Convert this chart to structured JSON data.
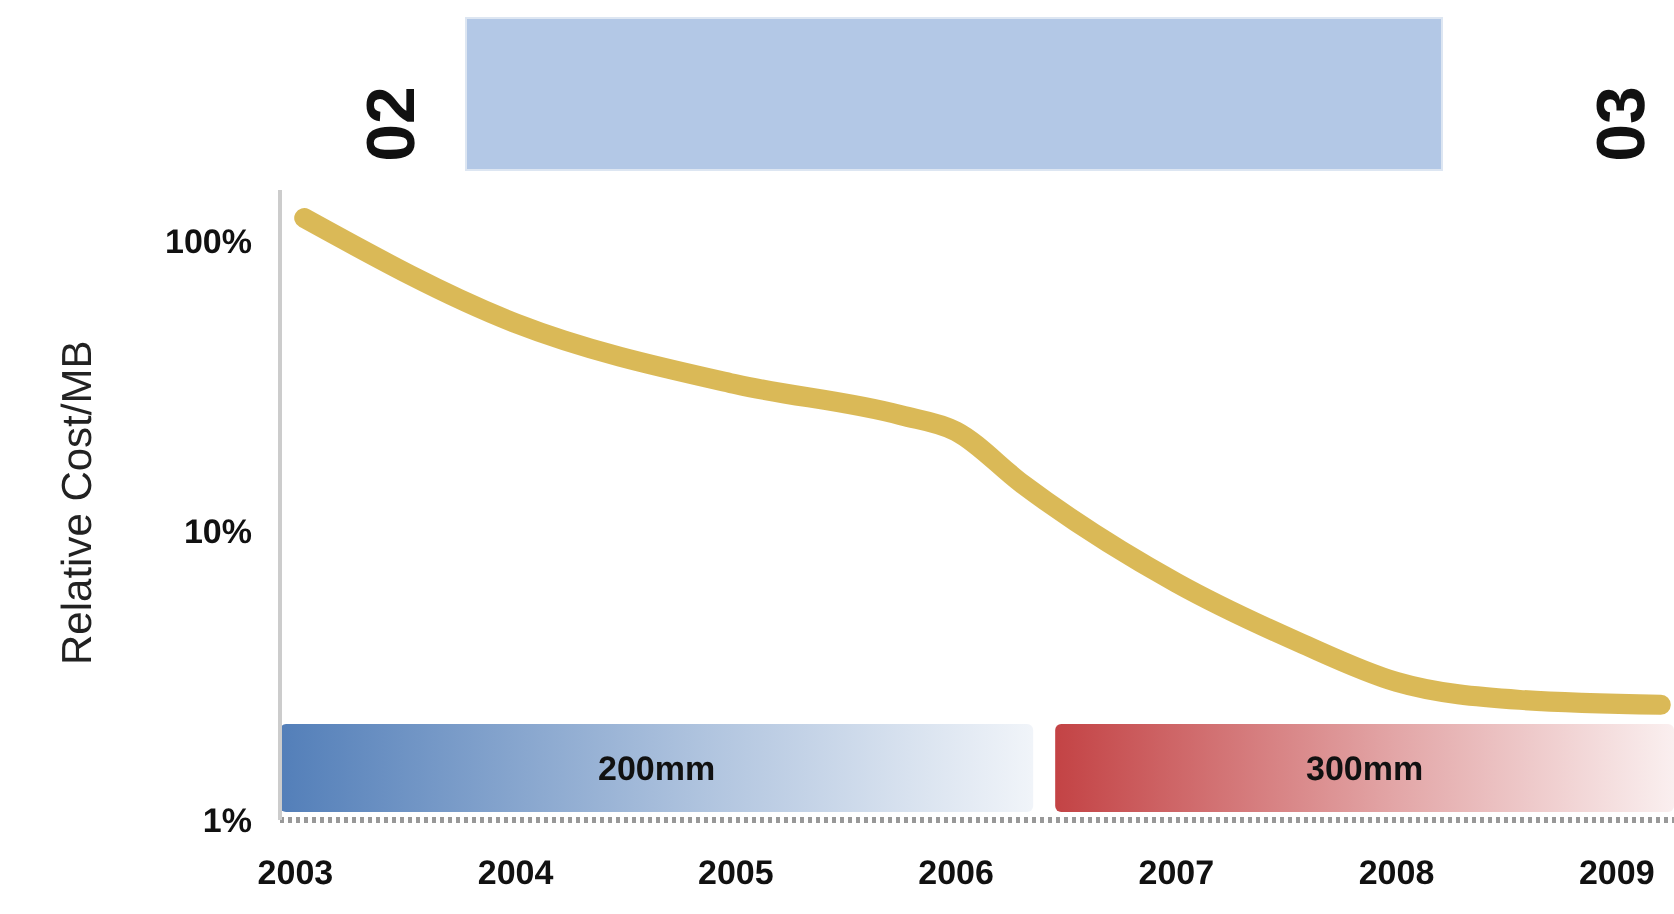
{
  "chart_data": {
    "type": "line",
    "ylabel": "Relative Cost/MB",
    "log": "y",
    "xlim": [
      2002.93,
      2009.26
    ],
    "xticks": [
      2003,
      2004,
      2005,
      2006,
      2007,
      2008,
      2009
    ],
    "ylim": [
      1,
      150
    ],
    "yticks": [
      {
        "value": 1,
        "label": "1%"
      },
      {
        "value": 10,
        "label": "10%"
      },
      {
        "value": 100,
        "label": "100%"
      }
    ],
    "series": [
      {
        "color": "#d4ad3a",
        "x": [
          2003.04,
          2004,
          2005,
          2005.75,
          2006,
          2006.3,
          2007,
          2007.56,
          2008,
          2008.56,
          2009.2
        ],
        "values": [
          120,
          52,
          32,
          25,
          22,
          14.5,
          6.6,
          4.1,
          3.0,
          2.6,
          2.5
        ]
      }
    ],
    "bands": [
      {
        "axis": "x",
        "from": 2002.93,
        "to": 2006.35,
        "label": "200mm",
        "color": "#4a78b5"
      },
      {
        "axis": "x",
        "from": 2006.45,
        "to": 2009.26,
        "label": "300mm",
        "color": "#c0393b"
      }
    ],
    "annotations": [
      "02",
      "03"
    ],
    "line_style": "solid",
    "marker": "none",
    "grid": false,
    "legend": false
  }
}
